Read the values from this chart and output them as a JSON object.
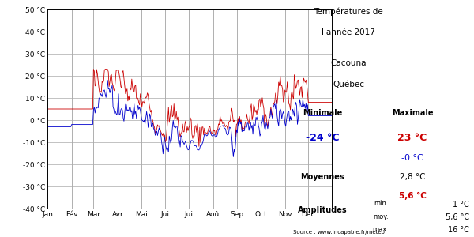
{
  "title_line1": "Températures de",
  "title_line2": "l'année 2017",
  "location_line1": "Cacouna",
  "location_line2": "Québec",
  "min_label": "Minimale",
  "max_label": "Maximale",
  "min_blue": "-24 °C",
  "max_red": "23 °C",
  "blue_zero": "-0 °C",
  "moyennes_label": "Moyennes",
  "moy_blue": "2,8 °C",
  "moy_red": "5,6 °C",
  "amplitudes_label": "Amplitudes",
  "source": "Source : www.incapable.fr/meteo",
  "months": [
    "Jan",
    "Fév",
    "Mar",
    "Avr",
    "Mai",
    "Jui",
    "Jui",
    "Aoû",
    "Sep",
    "Oct",
    "Nov",
    "Déc"
  ],
  "ylim": [
    -40,
    50
  ],
  "yticks": [
    -40,
    -30,
    -20,
    -10,
    0,
    10,
    20,
    30,
    40,
    50
  ],
  "plot_color_blue": "#0000cc",
  "plot_color_red": "#cc0000",
  "background_color": "#ffffff",
  "grid_color": "#aaaaaa"
}
